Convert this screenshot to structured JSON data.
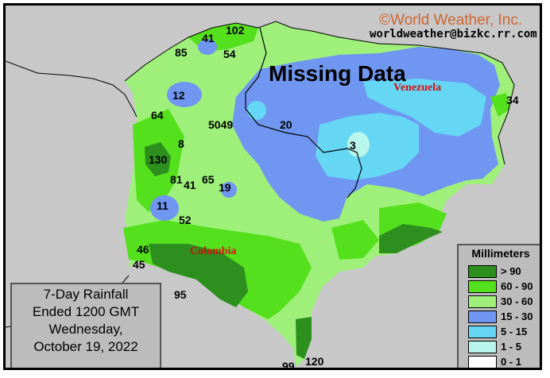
{
  "header": {
    "copyright": "©World Weather, Inc.",
    "email": "worldweather@bizkc.rr.com"
  },
  "missing_data_label": "Missing Data",
  "countries": {
    "venezuela": "Venezuela",
    "colombia": "Colombia"
  },
  "info": {
    "line1": "7-Day Rainfall",
    "line2": "Ended 1200 GMT",
    "line3": "Wednesday,",
    "line4": "October 19, 2022"
  },
  "legend": {
    "title": "Millimeters",
    "items": [
      {
        "label": "> 90",
        "color": "#2d8f1e"
      },
      {
        "label": "60 - 90",
        "color": "#55e01d"
      },
      {
        "label": "30 - 60",
        "color": "#9ef07a"
      },
      {
        "label": "15 - 30",
        "color": "#6f96f0"
      },
      {
        "label": "5 - 15",
        "color": "#66d6f5"
      },
      {
        "label": "1 - 5",
        "color": "#b8f5ea"
      },
      {
        "label": "0 - 1",
        "color": "#ffffff"
      }
    ]
  },
  "values": [
    "102",
    "41",
    "85",
    "54",
    "12",
    "64",
    "5049",
    "20",
    "34",
    "3",
    "8",
    "130",
    "81",
    "41",
    "65",
    "19",
    "11",
    "52",
    "46",
    "45",
    "95",
    "99",
    "120"
  ]
}
